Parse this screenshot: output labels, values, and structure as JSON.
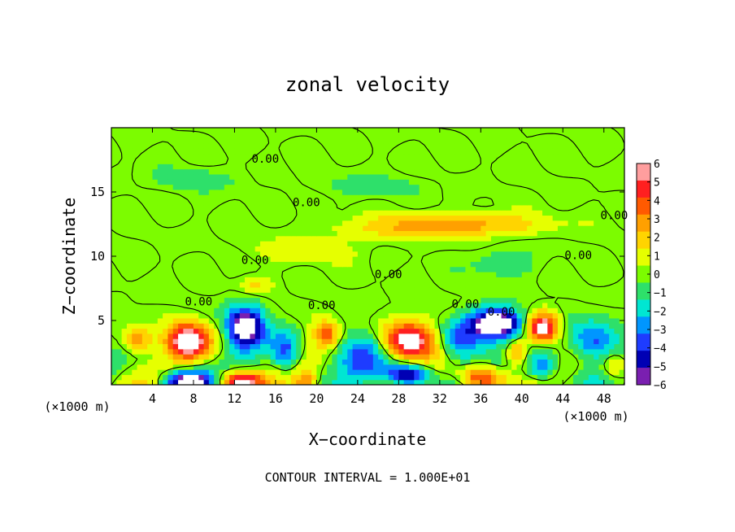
{
  "chart_data": {
    "type": "heatmap",
    "title": "zonal velocity",
    "xlabel": "X−coordinate",
    "ylabel": "Z−coordinate",
    "x_unit_left": "(×1000 m)",
    "x_unit_right": "(×1000 m)",
    "footer": "CONTOUR INTERVAL = 1.000E+01",
    "xlim": [
      0,
      50
    ],
    "ylim": [
      0,
      20
    ],
    "x_ticks": [
      4,
      8,
      12,
      16,
      20,
      24,
      28,
      32,
      36,
      40,
      44,
      48
    ],
    "y_ticks": [
      5,
      10,
      15
    ],
    "grid": false,
    "colorbar": {
      "ticks": [
        6,
        5,
        4,
        3,
        2,
        1,
        0,
        "−1",
        "−2",
        "−3",
        "−4",
        "−5",
        "−6"
      ],
      "colors": [
        "#ff9e9e",
        "#ff2020",
        "#ff5a00",
        "#ffa000",
        "#ffd400",
        "#e6ff00",
        "#7cfc00",
        "#2ee06a",
        "#00e6d2",
        "#0096ff",
        "#1e3cff",
        "#0000b4",
        "#7a1fb0"
      ],
      "range": [
        -6,
        6
      ]
    },
    "contour_labels": [
      {
        "text": "0.00",
        "x": 15,
        "z": 17.6
      },
      {
        "text": "0.00",
        "x": 19,
        "z": 14.2
      },
      {
        "text": "0.00",
        "x": 49,
        "z": 13.2
      },
      {
        "text": "0.00",
        "x": 14,
        "z": 9.7
      },
      {
        "text": "0.00",
        "x": 27,
        "z": 8.6
      },
      {
        "text": "0.00",
        "x": 45.5,
        "z": 10.1
      },
      {
        "text": "0.00",
        "x": 8.5,
        "z": 6.5
      },
      {
        "text": "0.00",
        "x": 20.5,
        "z": 6.2
      },
      {
        "text": "0.00",
        "x": 34.5,
        "z": 6.3
      },
      {
        "text": "0.00",
        "x": 38,
        "z": 5.7
      }
    ],
    "features": [
      {
        "x": 7.5,
        "z": 3.5,
        "value": 8,
        "sx": 2.0,
        "sz": 1.3
      },
      {
        "x": 13,
        "z": 4.5,
        "value": -8,
        "sx": 1.8,
        "sz": 1.6
      },
      {
        "x": 7.5,
        "z": 0.3,
        "value": -8,
        "sx": 2.3,
        "sz": 0.8
      },
      {
        "x": 12.5,
        "z": 0.3,
        "value": 8,
        "sx": 2.0,
        "sz": 0.8
      },
      {
        "x": 2.5,
        "z": 3.5,
        "value": 4,
        "sx": 1.5,
        "sz": 1.0
      },
      {
        "x": 17,
        "z": 2.5,
        "value": -4,
        "sx": 1.3,
        "sz": 1.5
      },
      {
        "x": 21,
        "z": 4.0,
        "value": 4,
        "sx": 1.2,
        "sz": 1.0
      },
      {
        "x": 24.5,
        "z": 2.5,
        "value": -3.5,
        "sx": 2.5,
        "sz": 1.8
      },
      {
        "x": 29,
        "z": 3.5,
        "value": 8,
        "sx": 2.5,
        "sz": 1.4
      },
      {
        "x": 29,
        "z": 0.8,
        "value": -8,
        "sx": 2.0,
        "sz": 0.8
      },
      {
        "x": 34,
        "z": 3.5,
        "value": -4.5,
        "sx": 2.0,
        "sz": 1.5
      },
      {
        "x": 37.5,
        "z": 4.8,
        "value": -9,
        "sx": 2.5,
        "sz": 1.1
      },
      {
        "x": 36,
        "z": 0.6,
        "value": 6,
        "sx": 2.0,
        "sz": 0.9
      },
      {
        "x": 39.5,
        "z": 2.5,
        "value": 4,
        "sx": 1.0,
        "sz": 1.0
      },
      {
        "x": 42,
        "z": 4.5,
        "value": 8,
        "sx": 1.5,
        "sz": 1.1
      },
      {
        "x": 42,
        "z": 1.5,
        "value": -4,
        "sx": 1.5,
        "sz": 1.2
      },
      {
        "x": 47,
        "z": 3.5,
        "value": -4.5,
        "sx": 2.3,
        "sz": 1.5
      },
      {
        "x": 49,
        "z": 1.5,
        "value": 3,
        "sx": 1.2,
        "sz": 1.0
      },
      {
        "x": 19,
        "z": 0.3,
        "value": 4,
        "sx": 1.0,
        "sz": 0.6
      },
      {
        "x": 35,
        "z": 12.5,
        "value": 3,
        "sx": 7.0,
        "sz": 0.8
      },
      {
        "x": 28,
        "z": 12.2,
        "value": 1.6,
        "sx": 7.0,
        "sz": 0.9
      },
      {
        "x": 14,
        "z": 7.8,
        "value": 2,
        "sx": 1.5,
        "sz": 0.6
      },
      {
        "x": 19,
        "z": 10.5,
        "value": 1.2,
        "sx": 5.0,
        "sz": 0.9
      },
      {
        "x": 38,
        "z": 9.5,
        "value": -1.5,
        "sx": 3.0,
        "sz": 1.0
      },
      {
        "x": 8,
        "z": 16,
        "value": -1.2,
        "sx": 4.0,
        "sz": 0.8
      },
      {
        "x": 25,
        "z": 15.5,
        "value": -1.0,
        "sx": 5.0,
        "sz": 0.8
      }
    ]
  }
}
